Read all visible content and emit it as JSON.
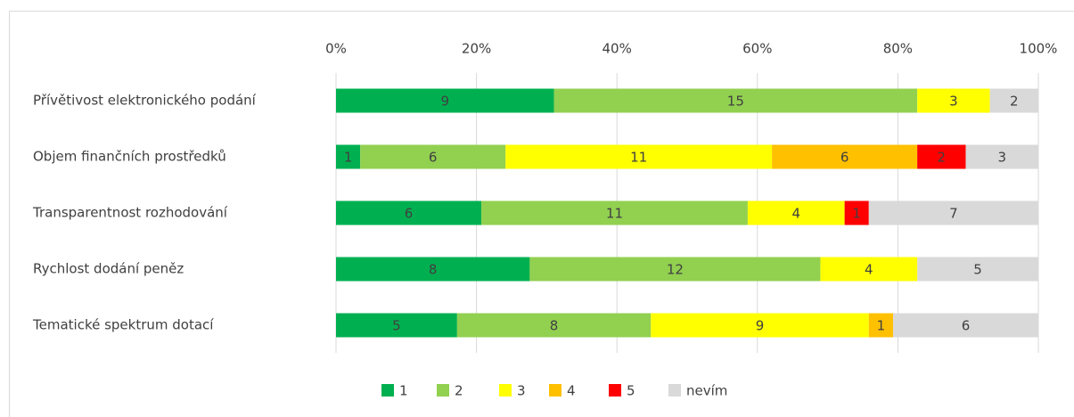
{
  "chart_data": {
    "type": "bar",
    "orientation": "horizontal",
    "stacking": "percent",
    "categories": [
      "Přívětivost elektronického podání",
      "Objem finančních prostředků",
      "Transparentnost rozhodování",
      "Rychlost dodání peněz",
      "Tematické spektrum dotací"
    ],
    "series": [
      {
        "name": "1",
        "color": "#00b050",
        "values": [
          9,
          1,
          6,
          8,
          5
        ]
      },
      {
        "name": "2",
        "color": "#92d050",
        "values": [
          15,
          6,
          11,
          12,
          8
        ]
      },
      {
        "name": "3",
        "color": "#ffff00",
        "values": [
          3,
          11,
          4,
          4,
          9
        ]
      },
      {
        "name": "4",
        "color": "#ffc000",
        "values": [
          null,
          6,
          null,
          null,
          1
        ]
      },
      {
        "name": "5",
        "color": "#ff0000",
        "values": [
          null,
          2,
          1,
          null,
          null
        ]
      },
      {
        "name": "nevím",
        "color": "#d9d9d9",
        "values": [
          2,
          3,
          7,
          5,
          6
        ]
      }
    ],
    "xlim": [
      0,
      100
    ],
    "xticks": [
      {
        "value": 0,
        "label": "0%"
      },
      {
        "value": 20,
        "label": "20%"
      },
      {
        "value": 40,
        "label": "40%"
      },
      {
        "value": 60,
        "label": "60%"
      },
      {
        "value": 80,
        "label": "80%"
      },
      {
        "value": 100,
        "label": "100%"
      }
    ],
    "grid": true,
    "legend": "bottom"
  }
}
